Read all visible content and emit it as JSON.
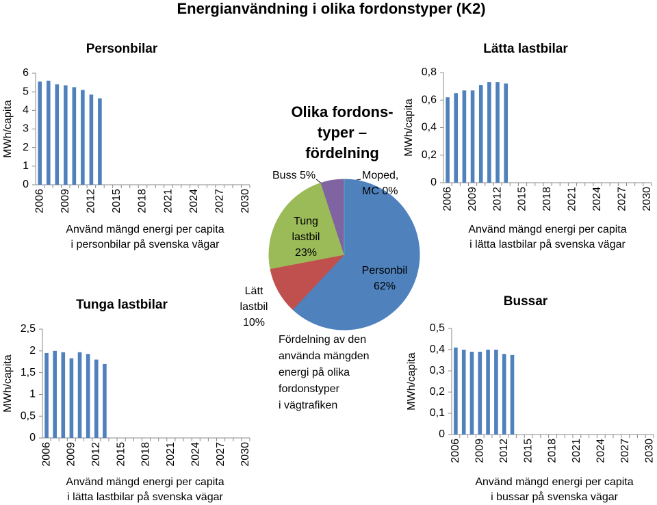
{
  "title": "Energianvändning i olika fordonstyper (K2)",
  "chart_data": [
    {
      "type": "bar",
      "title": "Personbilar",
      "y_label": "MWh/capita",
      "x_label": [
        "Använd mängd energi per capita",
        "i personbilar på svenska vägar"
      ],
      "categories": [
        "2006",
        null,
        null,
        "2009",
        null,
        null,
        "2012",
        null,
        null,
        "2015",
        null,
        null,
        "2018",
        null,
        null,
        "2021",
        null,
        null,
        "2024",
        null,
        null,
        "2027",
        null,
        null,
        "2030"
      ],
      "values": [
        5.55,
        5.6,
        5.4,
        5.35,
        5.25,
        5.1,
        4.85,
        4.65,
        null,
        null,
        null,
        null,
        null,
        null,
        null,
        null,
        null,
        null,
        null,
        null,
        null,
        null,
        null,
        null,
        null
      ],
      "color": "#4f81bd",
      "ylim": [
        0,
        6
      ],
      "yticks": [
        0,
        1,
        2,
        3,
        4,
        5,
        6
      ]
    },
    {
      "type": "bar",
      "title": "Lätta lastbilar",
      "y_label": "MWh/capita",
      "x_label": [
        "Använd mängd energi per capita",
        "i lätta lastbilar på svenska vägar"
      ],
      "categories": [
        "2006",
        null,
        null,
        "2009",
        null,
        null,
        "2012",
        null,
        null,
        "2015",
        null,
        null,
        "2018",
        null,
        null,
        "2021",
        null,
        null,
        "2024",
        null,
        null,
        "2027",
        null,
        null,
        "2030"
      ],
      "values": [
        0.62,
        0.65,
        0.67,
        0.67,
        0.71,
        0.73,
        0.73,
        0.72,
        null,
        null,
        null,
        null,
        null,
        null,
        null,
        null,
        null,
        null,
        null,
        null,
        null,
        null,
        null,
        null,
        null
      ],
      "color": "#4f81bd",
      "ylim": [
        0,
        0.8
      ],
      "yticks": [
        0,
        {
          "value": 0.2,
          "label": "0,2"
        },
        {
          "value": 0.4,
          "label": "0,4"
        },
        {
          "value": 0.6,
          "label": "0,6"
        },
        {
          "value": 0.8,
          "label": "0,8"
        }
      ]
    },
    {
      "type": "pie",
      "title": [
        "Olika fordons-",
        "typer –",
        "fördelning"
      ],
      "note": [
        "Fördelning av den",
        "använda mängden",
        "energi på olika",
        "fordonstyper",
        "i vägtrafiken"
      ],
      "categories": [
        "Personbil",
        "Lätt lastbil",
        "Tung lastbil",
        "Buss",
        "Moped, MC"
      ],
      "values": [
        62,
        10,
        23,
        5,
        0
      ],
      "value_labels": [
        "62%",
        "10%",
        "23%",
        "5%",
        "0%"
      ],
      "colors": [
        "#4f81bd",
        "#c0504d",
        "#9bbb59",
        "#8064a2",
        "#4bacc6"
      ]
    },
    {
      "type": "bar",
      "title": "Tunga lastbilar",
      "y_label": "MWh/capita",
      "x_label": [
        "Använd mängd energi per capita",
        "i lätta lastbilar på svenska vägar"
      ],
      "categories": [
        "2006",
        null,
        null,
        "2009",
        null,
        null,
        "2012",
        null,
        null,
        "2015",
        null,
        null,
        "2018",
        null,
        null,
        "2021",
        null,
        null,
        "2024",
        null,
        null,
        "2027",
        null,
        null,
        "2030"
      ],
      "values": [
        1.95,
        2.0,
        1.97,
        1.83,
        1.97,
        1.93,
        1.8,
        1.7,
        null,
        null,
        null,
        null,
        null,
        null,
        null,
        null,
        null,
        null,
        null,
        null,
        null,
        null,
        null,
        null,
        null
      ],
      "color": "#4f81bd",
      "ylim": [
        0,
        2.5
      ],
      "yticks": [
        0,
        {
          "value": 0.5,
          "label": "0,5"
        },
        1,
        {
          "value": 1.5,
          "label": "1,5"
        },
        2,
        {
          "value": 2.5,
          "label": "2,5"
        }
      ]
    },
    {
      "type": "bar",
      "title": "Bussar",
      "y_label": "MWh/capita",
      "x_label": [
        "Använd mängd energi per capita",
        "i bussar på svenska vägar"
      ],
      "categories": [
        "2006",
        null,
        null,
        "2009",
        null,
        null,
        "2012",
        null,
        null,
        "2015",
        null,
        null,
        "2018",
        null,
        null,
        "2021",
        null,
        null,
        "2024",
        null,
        null,
        "2027",
        null,
        null,
        "2030"
      ],
      "values": [
        0.41,
        0.4,
        0.39,
        0.39,
        0.4,
        0.4,
        0.38,
        0.375,
        null,
        null,
        null,
        null,
        null,
        null,
        null,
        null,
        null,
        null,
        null,
        null,
        null,
        null,
        null,
        null,
        null
      ],
      "color": "#4f81bd",
      "ylim": [
        0,
        0.5
      ],
      "yticks": [
        0,
        {
          "value": 0.1,
          "label": "0,1"
        },
        {
          "value": 0.2,
          "label": "0,2"
        },
        {
          "value": 0.3,
          "label": "0,3"
        },
        {
          "value": 0.4,
          "label": "0,4"
        },
        {
          "value": 0.5,
          "label": "0,5"
        }
      ]
    }
  ]
}
